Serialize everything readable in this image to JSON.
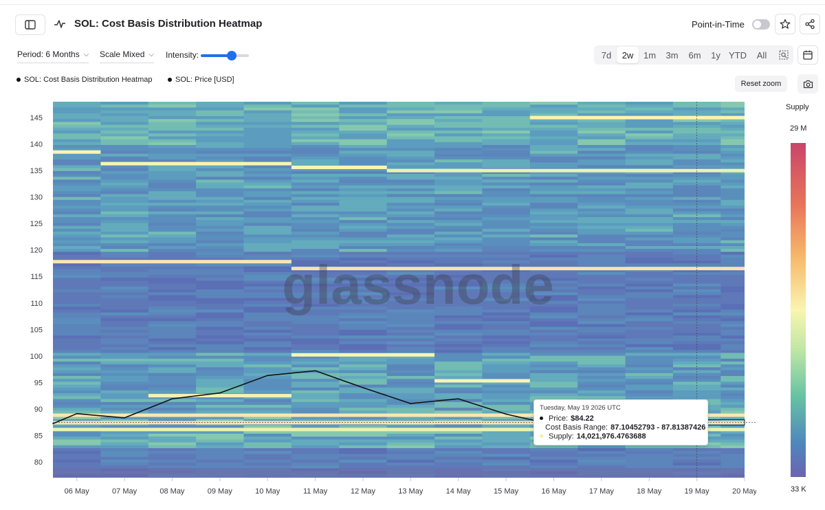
{
  "header": {
    "title": "SOL: Cost Basis Distribution Heatmap",
    "point_in_time_label": "Point-in-Time",
    "point_in_time_enabled": false
  },
  "controls": {
    "period_label": "Period: 6 Months",
    "scale_label": "Scale Mixed",
    "intensity_label": "Intensity:",
    "intensity_value": 0.64,
    "ranges": [
      "7d",
      "2w",
      "1m",
      "3m",
      "6m",
      "1y",
      "YTD",
      "All"
    ],
    "active_range": "2w"
  },
  "legend": {
    "items": [
      "SOL: Cost Basis Distribution Heatmap",
      "SOL: Price [USD]"
    ]
  },
  "reset_zoom_label": "Reset zoom",
  "watermark": "glassnode",
  "colorscale": {
    "title": "Supply",
    "max_label": "29 M",
    "min_label": "33 K",
    "colors": [
      "#c9456a",
      "#e8735a",
      "#f7b86a",
      "#faf5b0",
      "#bfe6a4",
      "#66c2a4",
      "#4f86bd",
      "#6c64b0"
    ]
  },
  "tooltip": {
    "date": "Tuesday, May 19 2026 UTC",
    "price_label": "Price:",
    "price_value": "$84.22",
    "range_label": "Cost Basis Range:",
    "range_value": "87.10452793 - 87.81387426",
    "supply_label": "Supply:",
    "supply_value": "14,021,976.4763688"
  },
  "chart_data": {
    "type": "heatmap",
    "title": "SOL: Cost Basis Distribution Heatmap",
    "xlabel": "",
    "ylabel": "",
    "x_ticks": [
      "06 May",
      "07 May",
      "08 May",
      "09 May",
      "10 May",
      "11 May",
      "12 May",
      "13 May",
      "14 May",
      "15 May",
      "16 May",
      "17 May",
      "18 May",
      "19 May",
      "20 May"
    ],
    "y_ticks": [
      80,
      85,
      90,
      95,
      100,
      105,
      110,
      115,
      120,
      125,
      130,
      135,
      140,
      145
    ],
    "xlim": [
      "2026-05-05T12:00",
      "2026-05-20"
    ],
    "ylim": [
      77,
      148
    ],
    "grid": false,
    "legend_position": "top-left",
    "series": [
      {
        "name": "SOL: Price [USD]",
        "type": "line",
        "color": "#111111",
        "x": [
          "2026-05-05T12:00",
          "2026-05-06",
          "2026-05-07",
          "2026-05-08",
          "2026-05-09",
          "2026-05-10",
          "2026-05-11",
          "2026-05-12",
          "2026-05-13",
          "2026-05-14",
          "2026-05-15",
          "2026-05-16",
          "2026-05-17",
          "2026-05-18",
          "2026-05-19"
        ],
        "y": [
          87.2,
          89.1,
          88.3,
          91.9,
          93.0,
          96.3,
          97.2,
          94.0,
          91.0,
          91.9,
          89.0,
          87.0,
          86.0,
          85.0,
          84.22
        ]
      },
      {
        "name": "SOL: Cost Basis Distribution Heatmap",
        "type": "heatmap",
        "highlight_bands": [
          {
            "from": "2026-05-05T12:00",
            "to": "2026-05-06T12:00",
            "price": 138.5,
            "color": "#faf5b0"
          },
          {
            "from": "2026-05-06T12:00",
            "to": "2026-05-10T12:00",
            "price": 136.3,
            "color": "#faf5b0"
          },
          {
            "from": "2026-05-10T12:00",
            "to": "2026-05-12T12:00",
            "price": 135.6,
            "color": "#faf5b0"
          },
          {
            "from": "2026-05-12T12:00",
            "to": "2026-05-20",
            "price": 135.0,
            "color": "#e8f4b0"
          },
          {
            "from": "2026-05-05T12:00",
            "to": "2026-05-10T12:00",
            "price": 117.8,
            "color": "#fbe6b0"
          },
          {
            "from": "2026-05-10T12:00",
            "to": "2026-05-20",
            "price": 116.5,
            "color": "#fbe2b0"
          },
          {
            "from": "2026-05-10T12:00",
            "to": "2026-05-13T12:00",
            "price": 100.2,
            "color": "#faf5b0"
          },
          {
            "from": "2026-05-13T12:00",
            "to": "2026-05-15T12:00",
            "price": 95.3,
            "color": "#faf5b0"
          },
          {
            "from": "2026-05-07T12:00",
            "to": "2026-05-10T12:00",
            "price": 92.5,
            "color": "#f4f3b0"
          },
          {
            "from": "2026-05-05T12:00",
            "to": "2026-05-20",
            "price": 88.8,
            "color": "#fbe6b0"
          },
          {
            "from": "2026-05-05T12:00",
            "to": "2026-05-20",
            "price": 87.4,
            "color": "#fbe2b0"
          },
          {
            "from": "2026-05-05T12:00",
            "to": "2026-05-20",
            "price": 86.1,
            "color": "#e8f4b0"
          },
          {
            "from": "2026-05-15T12:00",
            "to": "2026-05-20",
            "price": 145.0,
            "color": "#faf5b0"
          }
        ]
      }
    ]
  }
}
